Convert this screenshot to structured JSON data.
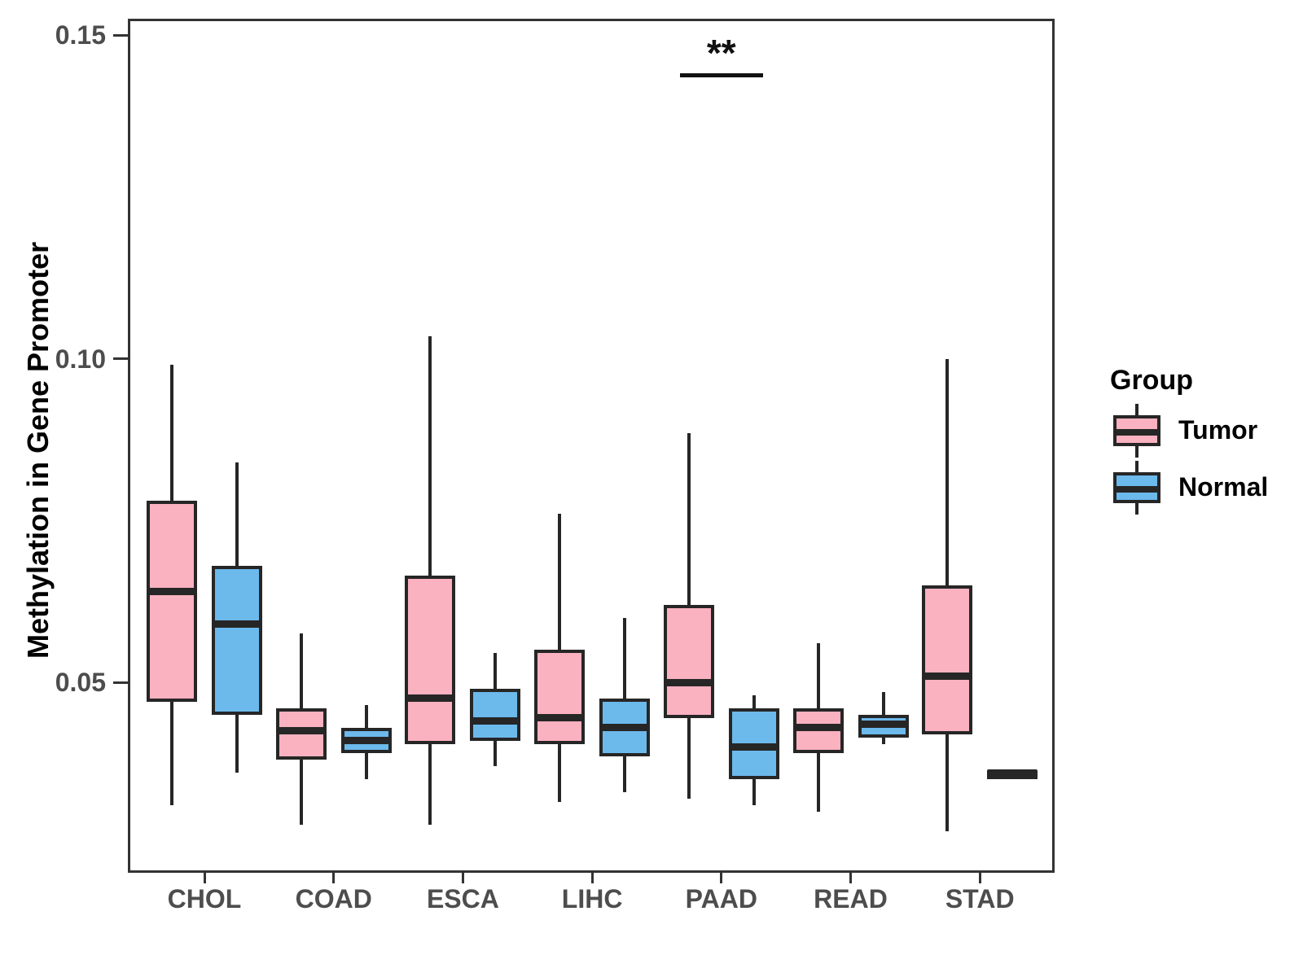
{
  "chart_data": {
    "type": "boxplot",
    "title": "",
    "ylabel": "Methylation in Gene Promoter",
    "xlabel": "",
    "categories": [
      "CHOL",
      "COAD",
      "ESCA",
      "LIHC",
      "PAAD",
      "READ",
      "STAD"
    ],
    "yticks": [
      {
        "value": 0.05,
        "label": "0.05"
      },
      {
        "value": 0.1,
        "label": "0.10"
      },
      {
        "value": 0.15,
        "label": "0.15"
      }
    ],
    "ylim": [
      0.0206,
      0.1525
    ],
    "grid": false,
    "legend": {
      "title": "Group",
      "position": "right",
      "entries": [
        {
          "label": "Tumor",
          "color": "#FAB1C0"
        },
        {
          "label": "Normal",
          "color": "#6CB9EC"
        }
      ]
    },
    "annotation": {
      "label": "**",
      "category": "PAAD",
      "between_groups": [
        "Tumor",
        "Normal"
      ],
      "bar_y_value": 0.1438
    },
    "series": [
      {
        "name": "Tumor",
        "color": "#FAB1C0",
        "boxes": [
          {
            "category": "CHOL",
            "min": 0.031,
            "q1": 0.047,
            "median": 0.064,
            "q3": 0.078,
            "max": 0.099
          },
          {
            "category": "COAD",
            "min": 0.028,
            "q1": 0.038,
            "median": 0.0425,
            "q3": 0.046,
            "max": 0.0575
          },
          {
            "category": "ESCA",
            "min": 0.028,
            "q1": 0.0405,
            "median": 0.0475,
            "q3": 0.0665,
            "max": 0.1035
          },
          {
            "category": "LIHC",
            "min": 0.0315,
            "q1": 0.0405,
            "median": 0.0445,
            "q3": 0.055,
            "max": 0.076
          },
          {
            "category": "PAAD",
            "min": 0.032,
            "q1": 0.0445,
            "median": 0.05,
            "q3": 0.062,
            "max": 0.0885
          },
          {
            "category": "READ",
            "min": 0.03,
            "q1": 0.039,
            "median": 0.043,
            "q3": 0.046,
            "max": 0.056
          },
          {
            "category": "STAD",
            "min": 0.027,
            "q1": 0.042,
            "median": 0.051,
            "q3": 0.065,
            "max": 0.1
          }
        ]
      },
      {
        "name": "Normal",
        "color": "#6CB9EC",
        "boxes": [
          {
            "category": "CHOL",
            "min": 0.036,
            "q1": 0.045,
            "median": 0.059,
            "q3": 0.068,
            "max": 0.084
          },
          {
            "category": "COAD",
            "min": 0.035,
            "q1": 0.039,
            "median": 0.041,
            "q3": 0.043,
            "max": 0.0465
          },
          {
            "category": "ESCA",
            "min": 0.037,
            "q1": 0.041,
            "median": 0.044,
            "q3": 0.049,
            "max": 0.0545
          },
          {
            "category": "LIHC",
            "min": 0.033,
            "q1": 0.0385,
            "median": 0.043,
            "q3": 0.0475,
            "max": 0.06
          },
          {
            "category": "PAAD",
            "min": 0.031,
            "q1": 0.035,
            "median": 0.04,
            "q3": 0.046,
            "max": 0.048
          },
          {
            "category": "READ",
            "min": 0.0405,
            "q1": 0.0415,
            "median": 0.0435,
            "q3": 0.045,
            "max": 0.0485
          },
          {
            "category": "STAD",
            "min": 0.036,
            "q1": 0.036,
            "median": 0.036,
            "q3": 0.036,
            "max": 0.036
          }
        ]
      }
    ],
    "colors": {
      "box_stroke": "#262626",
      "panel_border": "#333333",
      "axis_text": "#4D4D4D",
      "axis_title": "#000000",
      "background": "#FFFFFF"
    }
  }
}
